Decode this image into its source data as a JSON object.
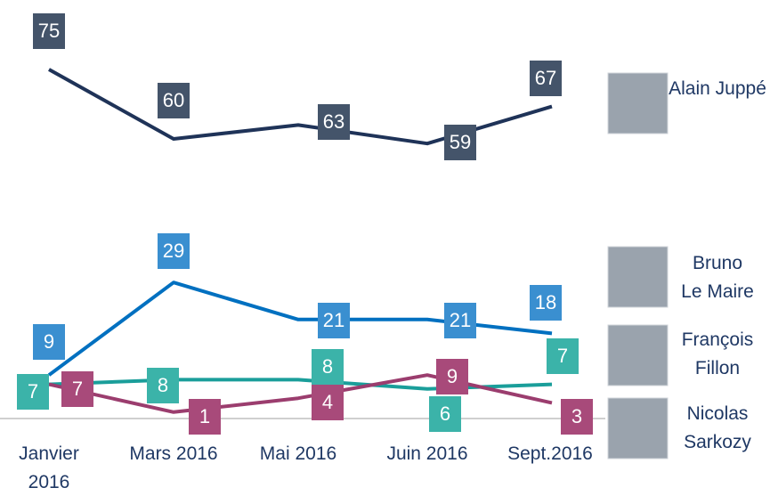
{
  "chart_data": {
    "type": "line",
    "categories": [
      "Janvier 2016",
      "Mars 2016",
      "Mai 2016",
      "Juin 2016",
      "Sept.2016"
    ],
    "ylim": [
      0,
      80
    ],
    "series": [
      {
        "name": "Alain Juppé",
        "color": "#1f3358",
        "values": [
          75,
          60,
          63,
          59,
          67
        ]
      },
      {
        "name": "Bruno Le Maire",
        "color": "#0070c0",
        "values": [
          9,
          29,
          21,
          21,
          18
        ]
      },
      {
        "name": "François Fillon",
        "color": "#1a9e9a",
        "values": [
          7,
          8,
          8,
          6,
          7
        ]
      },
      {
        "name": "Nicolas Sarkozy",
        "color": "#9b3d6e",
        "values": [
          7,
          1,
          4,
          9,
          3
        ]
      }
    ]
  }
}
